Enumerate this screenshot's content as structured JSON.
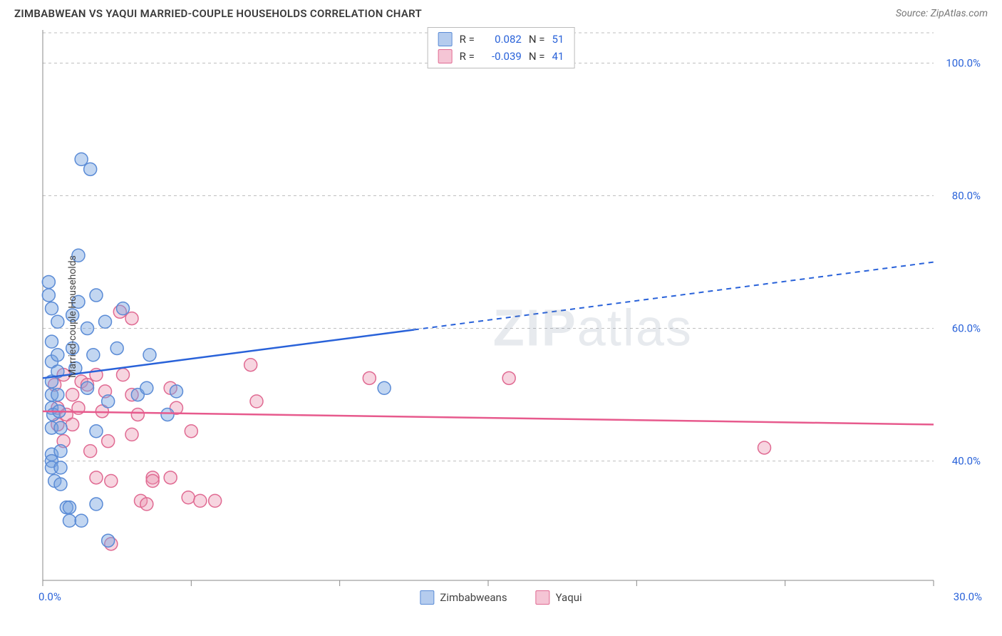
{
  "header": {
    "title": "ZIMBABWEAN VS YAQUI MARRIED-COUPLE HOUSEHOLDS CORRELATION CHART",
    "source": "Source: ZipAtlas.com"
  },
  "watermark": {
    "left": "ZIP",
    "right": "atlas"
  },
  "chart": {
    "type": "scatter",
    "y_label": "Married-couple Households",
    "x_min": 0.0,
    "x_max": 30.0,
    "y_min": 22.0,
    "y_max": 105.0,
    "x_ticks": [
      0.0,
      5.0,
      10.0,
      15.0,
      20.0,
      25.0,
      30.0
    ],
    "x_tick_labels_visible": {
      "0.0": "0.0%",
      "30.0": "30.0%"
    },
    "y_ticks": [
      40.0,
      60.0,
      80.0,
      100.0
    ],
    "y_tick_labels": {
      "40.0": "40.0%",
      "60.0": "60.0%",
      "80.0": "80.0%",
      "100.0": "100.0%"
    },
    "grid_color": "#bfbfbf",
    "background_color": "#ffffff",
    "axis_color": "#888888",
    "marker_radius": 9,
    "marker_stroke_width": 1.5,
    "series": [
      {
        "name": "Zimbabweans",
        "marker_fill": "rgba(120,163,224,0.45)",
        "marker_stroke": "#5a8bd6",
        "line_color": "#2962d9",
        "line_width": 2.5,
        "R": "0.082",
        "N": "51",
        "trend": {
          "x1": 0.0,
          "y1": 52.5,
          "x2": 30.0,
          "y2": 70.0,
          "solid_until_x": 12.5
        },
        "points": [
          [
            0.2,
            67.0
          ],
          [
            0.2,
            65.0
          ],
          [
            0.3,
            63.0
          ],
          [
            0.3,
            58.0
          ],
          [
            0.3,
            55.0
          ],
          [
            0.3,
            52.0
          ],
          [
            0.3,
            50.0
          ],
          [
            0.3,
            48.0
          ],
          [
            0.35,
            47.0
          ],
          [
            0.3,
            45.0
          ],
          [
            0.3,
            41.0
          ],
          [
            0.3,
            40.0
          ],
          [
            0.3,
            39.0
          ],
          [
            0.4,
            37.0
          ],
          [
            0.5,
            61.0
          ],
          [
            0.5,
            56.0
          ],
          [
            0.5,
            53.5
          ],
          [
            0.5,
            50.0
          ],
          [
            0.55,
            47.5
          ],
          [
            0.6,
            45.0
          ],
          [
            0.6,
            41.5
          ],
          [
            0.6,
            39.0
          ],
          [
            0.6,
            36.5
          ],
          [
            0.8,
            33.0
          ],
          [
            0.9,
            33.0
          ],
          [
            0.9,
            31.0
          ],
          [
            1.0,
            62.0
          ],
          [
            1.0,
            57.0
          ],
          [
            1.1,
            54.0
          ],
          [
            1.2,
            71.0
          ],
          [
            1.2,
            64.0
          ],
          [
            1.3,
            31.0
          ],
          [
            1.3,
            85.5
          ],
          [
            1.5,
            60.0
          ],
          [
            1.5,
            51.0
          ],
          [
            1.6,
            84.0
          ],
          [
            1.7,
            56.0
          ],
          [
            1.8,
            65.0
          ],
          [
            1.8,
            44.5
          ],
          [
            1.8,
            33.5
          ],
          [
            2.1,
            61.0
          ],
          [
            2.2,
            49.0
          ],
          [
            2.2,
            28.0
          ],
          [
            2.5,
            57.0
          ],
          [
            2.7,
            63.0
          ],
          [
            3.2,
            50.0
          ],
          [
            3.5,
            51.0
          ],
          [
            3.6,
            56.0
          ],
          [
            4.2,
            47.0
          ],
          [
            4.5,
            50.5
          ],
          [
            11.5,
            51.0
          ]
        ]
      },
      {
        "name": "Yaqui",
        "marker_fill": "rgba(236,150,178,0.40)",
        "marker_stroke": "#e06a92",
        "line_color": "#e75a8d",
        "line_width": 2.5,
        "R": "-0.039",
        "N": "41",
        "trend": {
          "x1": 0.0,
          "y1": 47.5,
          "x2": 30.0,
          "y2": 45.5,
          "solid_until_x": 30.0
        },
        "points": [
          [
            0.4,
            51.5
          ],
          [
            0.5,
            48.0
          ],
          [
            0.5,
            45.5
          ],
          [
            0.7,
            53.0
          ],
          [
            0.7,
            43.0
          ],
          [
            0.8,
            47.0
          ],
          [
            1.0,
            50.0
          ],
          [
            1.0,
            45.5
          ],
          [
            1.2,
            48.0
          ],
          [
            1.3,
            52.0
          ],
          [
            1.5,
            51.5
          ],
          [
            1.6,
            41.5
          ],
          [
            1.8,
            53.0
          ],
          [
            1.8,
            37.5
          ],
          [
            2.0,
            47.5
          ],
          [
            2.1,
            50.5
          ],
          [
            2.2,
            43.0
          ],
          [
            2.3,
            37.0
          ],
          [
            2.3,
            27.5
          ],
          [
            2.6,
            62.5
          ],
          [
            2.7,
            53.0
          ],
          [
            3.0,
            61.5
          ],
          [
            3.0,
            50.0
          ],
          [
            3.0,
            44.0
          ],
          [
            3.2,
            47.0
          ],
          [
            3.3,
            34.0
          ],
          [
            3.5,
            33.5
          ],
          [
            3.7,
            37.5
          ],
          [
            3.7,
            37.0
          ],
          [
            4.3,
            51.0
          ],
          [
            4.3,
            37.5
          ],
          [
            4.5,
            48.0
          ],
          [
            4.9,
            34.5
          ],
          [
            5.0,
            44.5
          ],
          [
            5.3,
            34.0
          ],
          [
            5.8,
            34.0
          ],
          [
            7.0,
            54.5
          ],
          [
            7.2,
            49.0
          ],
          [
            11.0,
            52.5
          ],
          [
            15.7,
            52.5
          ],
          [
            24.3,
            42.0
          ]
        ]
      }
    ],
    "stats_box": {
      "rows": [
        {
          "swatch_fill": "rgba(120,163,224,0.55)",
          "swatch_stroke": "#5a8bd6",
          "R": "0.082",
          "N": "51"
        },
        {
          "swatch_fill": "rgba(236,150,178,0.55)",
          "swatch_stroke": "#e06a92",
          "R": "-0.039",
          "N": "41"
        }
      ]
    },
    "x_legend": [
      {
        "swatch_fill": "rgba(120,163,224,0.55)",
        "swatch_stroke": "#5a8bd6",
        "label": "Zimbabweans"
      },
      {
        "swatch_fill": "rgba(236,150,178,0.55)",
        "swatch_stroke": "#e06a92",
        "label": "Yaqui"
      }
    ]
  },
  "labels": {
    "R_eq": "R =",
    "N_eq": "N ="
  }
}
